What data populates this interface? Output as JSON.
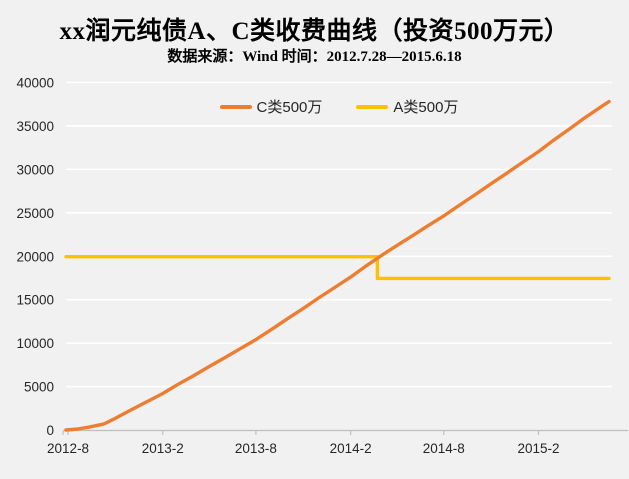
{
  "title": "xx润元纯债A、C类收费曲线（投资500万元）",
  "subtitle": "数据来源：Wind 时间：2012.7.28—2015.6.18",
  "colors": {
    "background": "#F1F1F1",
    "gridline": "#FFFFFF",
    "axis": "#BFBFBF",
    "tick_text": "#262626",
    "title_text": "#000000",
    "series_c": "#ED7D31",
    "series_a": "#FFC000"
  },
  "legend": [
    {
      "label": "C类500万",
      "color_key": "series_c"
    },
    {
      "label": "A类500万",
      "color_key": "series_a"
    }
  ],
  "chart_data": {
    "type": "line",
    "title": "xx润元纯债A、C类收费曲线（投资500万元）",
    "subtitle": "数据来源：Wind 时间：2012.7.28—2015.6.18",
    "legend_position": "top-center",
    "grid": "horizontal-only, white on light gray",
    "x_start": "2012-07-28",
    "x_end": "2015-06-18",
    "ylim": [
      0,
      40000
    ],
    "y_ticks": [
      0,
      5000,
      10000,
      15000,
      20000,
      25000,
      30000,
      35000,
      40000
    ],
    "x_ticks": [
      {
        "label": "2012-8",
        "date": "2012-08-01"
      },
      {
        "label": "2013-2",
        "date": "2013-02-01"
      },
      {
        "label": "2013-8",
        "date": "2013-08-01"
      },
      {
        "label": "2014-2",
        "date": "2014-02-01"
      },
      {
        "label": "2014-8",
        "date": "2014-08-01"
      },
      {
        "label": "2015-2",
        "date": "2015-02-01"
      }
    ],
    "series": [
      {
        "key": "c",
        "name": "C类500万",
        "color_key": "series_c",
        "points": [
          [
            "2012-07-28",
            0
          ],
          [
            "2012-08-20",
            120
          ],
          [
            "2012-09-10",
            320
          ],
          [
            "2012-10-10",
            700
          ],
          [
            "2012-11-01",
            1350
          ],
          [
            "2012-12-01",
            2300
          ],
          [
            "2013-01-01",
            3250
          ],
          [
            "2013-02-01",
            4200
          ],
          [
            "2013-03-01",
            5200
          ],
          [
            "2013-04-01",
            6220
          ],
          [
            "2013-05-01",
            7260
          ],
          [
            "2013-06-01",
            8300
          ],
          [
            "2013-07-01",
            9350
          ],
          [
            "2013-08-01",
            10400
          ],
          [
            "2013-09-01",
            11600
          ],
          [
            "2013-10-01",
            12800
          ],
          [
            "2013-11-01",
            14000
          ],
          [
            "2013-12-01",
            15200
          ],
          [
            "2014-01-01",
            16400
          ],
          [
            "2014-02-01",
            17600
          ],
          [
            "2014-03-01",
            18800
          ],
          [
            "2014-04-01",
            20050
          ],
          [
            "2014-05-01",
            21200
          ],
          [
            "2014-06-01",
            22350
          ],
          [
            "2014-07-01",
            23500
          ],
          [
            "2014-08-01",
            24650
          ],
          [
            "2014-09-01",
            25900
          ],
          [
            "2014-10-01",
            27100
          ],
          [
            "2014-11-01",
            28350
          ],
          [
            "2014-12-01",
            29550
          ],
          [
            "2015-01-01",
            30800
          ],
          [
            "2015-02-01",
            32050
          ],
          [
            "2015-03-01",
            33300
          ],
          [
            "2015-04-01",
            34600
          ],
          [
            "2015-05-01",
            35900
          ],
          [
            "2015-06-01",
            37150
          ],
          [
            "2015-06-18",
            37800
          ]
        ]
      },
      {
        "key": "a",
        "name": "A类500万",
        "color_key": "series_a",
        "points": [
          [
            "2012-07-28",
            19950
          ],
          [
            "2014-03-25",
            19950
          ],
          [
            "2014-03-25",
            17450
          ],
          [
            "2015-06-18",
            17450
          ]
        ]
      }
    ]
  }
}
